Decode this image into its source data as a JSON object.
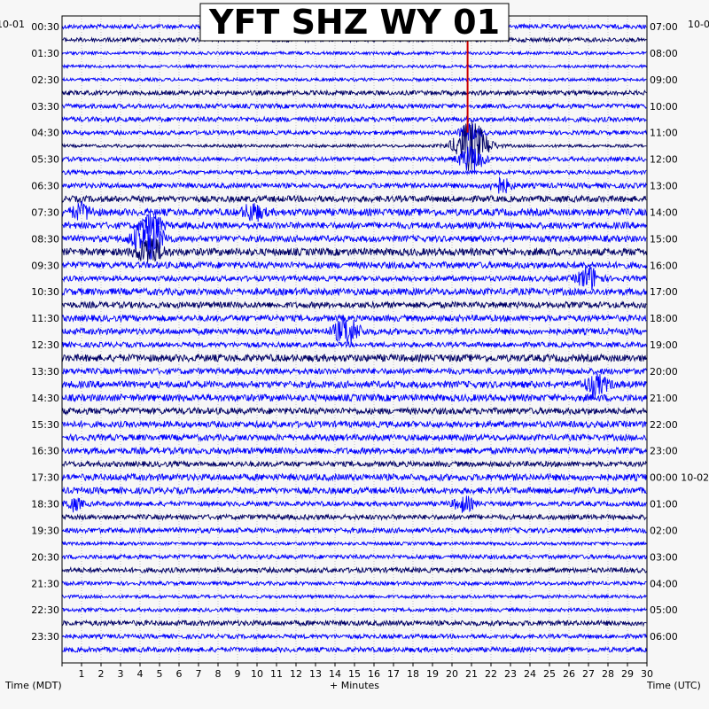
{
  "chart_data": {
    "type": "line",
    "title": "YFT SHZ WY 01",
    "xlabel": "+ Minutes",
    "left_axis_label": "Time (MDT)",
    "right_axis_label": "Time (UTC)",
    "date_left": "10-01",
    "date_right_top": "10-0",
    "xlim": [
      0,
      30
    ],
    "x_ticks": [
      "1",
      "2",
      "3",
      "4",
      "5",
      "6",
      "7",
      "8",
      "9",
      "10",
      "11",
      "12",
      "13",
      "14",
      "15",
      "16",
      "17",
      "18",
      "19",
      "20",
      "21",
      "22",
      "23",
      "24",
      "25",
      "26",
      "27",
      "28",
      "29",
      "30"
    ],
    "left_ticks": [
      "00:30",
      "01:30",
      "02:30",
      "03:30",
      "04:30",
      "05:30",
      "06:30",
      "07:30",
      "08:30",
      "09:30",
      "10:30",
      "11:30",
      "12:30",
      "13:30",
      "14:30",
      "15:30",
      "16:30",
      "17:30",
      "18:30",
      "19:30",
      "20:30",
      "21:30",
      "22:30",
      "23:30"
    ],
    "right_ticks": [
      "07:00",
      "08:00",
      "09:00",
      "10:00",
      "11:00",
      "12:00",
      "13:00",
      "14:00",
      "15:00",
      "16:00",
      "17:00",
      "18:00",
      "19:00",
      "20:00",
      "21:00",
      "22:00",
      "23:00",
      "00:00 10-02",
      "01:00",
      "02:00",
      "03:00",
      "04:00",
      "05:00",
      "06:00"
    ],
    "trace_count": 48,
    "trace_colors": [
      "#0000ff",
      "#000066",
      "#0000ff",
      "#0000ff"
    ],
    "colors": {
      "trace_dark": "#000066",
      "trace_blue": "#0000ff",
      "event_marker": "#cc0000",
      "grid": "#999999"
    },
    "event_marker": {
      "minute": 20.8,
      "start_trace": 1,
      "end_trace": 8
    },
    "bursts": [
      {
        "trace": 9,
        "minute": 21.0,
        "amp": 28,
        "width": 0.8
      },
      {
        "trace": 10,
        "minute": 21.0,
        "amp": 14,
        "width": 0.6
      },
      {
        "trace": 8,
        "minute": 20.9,
        "amp": 8,
        "width": 0.5
      },
      {
        "trace": 16,
        "minute": 4.4,
        "amp": 24,
        "width": 0.7
      },
      {
        "trace": 17,
        "minute": 4.5,
        "amp": 16,
        "width": 0.6
      },
      {
        "trace": 15,
        "minute": 4.6,
        "amp": 12,
        "width": 0.5
      },
      {
        "trace": 23,
        "minute": 14.6,
        "amp": 16,
        "width": 0.6
      },
      {
        "trace": 19,
        "minute": 27.0,
        "amp": 14,
        "width": 0.5
      },
      {
        "trace": 27,
        "minute": 27.4,
        "amp": 10,
        "width": 0.6
      },
      {
        "trace": 14,
        "minute": 1.0,
        "amp": 8,
        "width": 0.5
      },
      {
        "trace": 14,
        "minute": 9.8,
        "amp": 9,
        "width": 0.5
      },
      {
        "trace": 12,
        "minute": 22.5,
        "amp": 8,
        "width": 0.5
      },
      {
        "trace": 36,
        "minute": 20.6,
        "amp": 8,
        "width": 0.5
      },
      {
        "trace": 36,
        "minute": 0.6,
        "amp": 7,
        "width": 0.4
      }
    ],
    "grid": true
  }
}
